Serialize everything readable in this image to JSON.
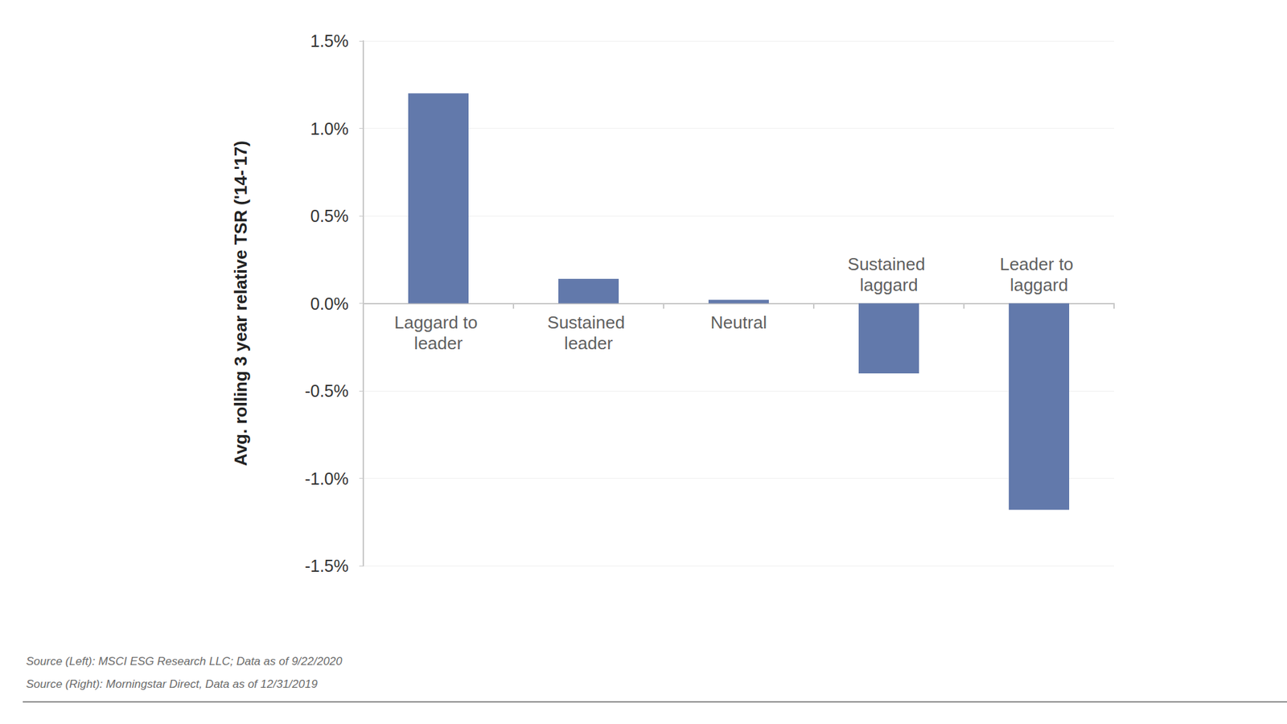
{
  "chart_data": {
    "type": "bar",
    "y_label": "Avg. rolling 3 year relative TSR ('14-'17)",
    "categories": [
      "Laggard to leader",
      "Sustained leader",
      "Neutral",
      "Sustained laggard",
      "Leader to laggard"
    ],
    "values": [
      1.2,
      0.14,
      0.02,
      -0.4,
      -1.18
    ],
    "color": "#6279ab",
    "ylim": [
      -1.5,
      1.5
    ],
    "yticks": [
      {
        "value": -1.5,
        "label": "-1.5%"
      },
      {
        "value": -1.0,
        "label": "-1.0%"
      },
      {
        "value": -0.5,
        "label": "-0.5%"
      },
      {
        "value": 0,
        "label": "0.0%"
      },
      {
        "value": 0.5,
        "label": "0.5%"
      },
      {
        "value": 1.0,
        "label": "1.0%"
      },
      {
        "value": 1.5,
        "label": "1.5%"
      }
    ],
    "grid": true,
    "annotations": [
      "Source (Left): MSCI ESG Research LLC; Data as of 9/22/2020",
      "Source (Right): Morningstar Direct, Data as of 12/31/2019"
    ]
  }
}
